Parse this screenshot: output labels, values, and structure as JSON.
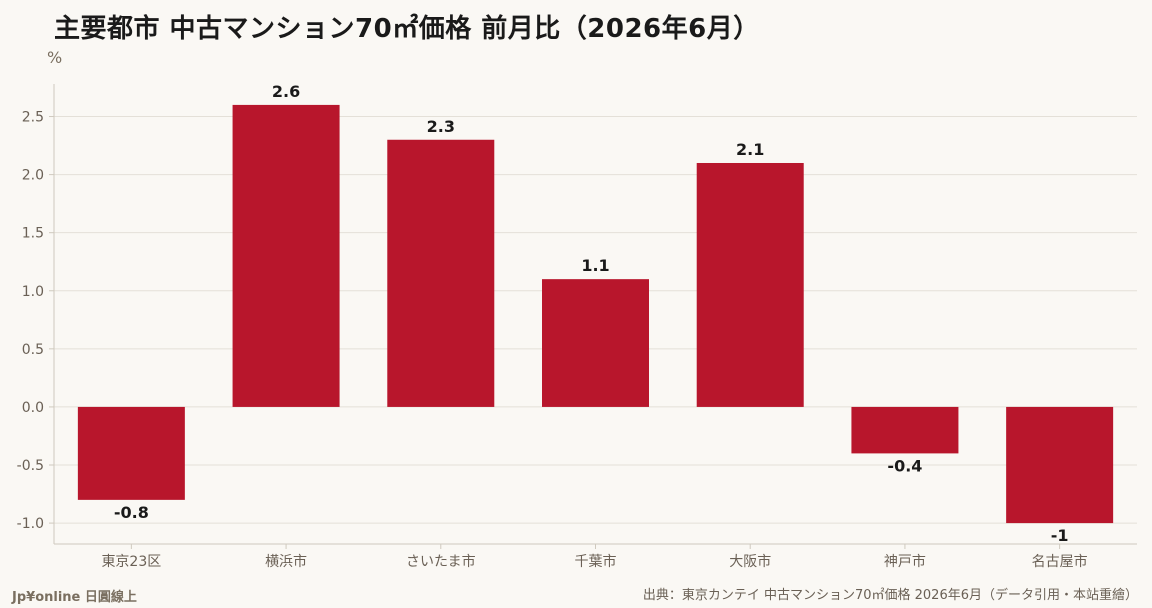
{
  "header": {
    "title": "主要都市 中古マンション70㎡価格 前月比（2026年6月）",
    "unit": "%"
  },
  "footer": {
    "brand": "Jp¥online 日圓線上",
    "source": "出典：東京カンテイ 中古マンション70㎡価格 2026年6月（データ引用・本站重繪）"
  },
  "colors": {
    "bar": "#b8162c",
    "grid": "#e4e0d8",
    "axis": "#cfc9be",
    "tick_text": "#6a6055",
    "background": "#faf8f4"
  },
  "chart_data": {
    "type": "bar",
    "title": "主要都市 中古マンション70㎡価格 前月比（2026年6月）",
    "ylabel": "%",
    "xlabel": "",
    "categories": [
      "東京23区",
      "横浜市",
      "さいたま市",
      "千葉市",
      "大阪市",
      "神戸市",
      "名古屋市"
    ],
    "values": [
      -0.8,
      2.6,
      2.3,
      1.1,
      2.1,
      -0.4,
      -1
    ],
    "value_labels": [
      "-0.8",
      "2.6",
      "2.3",
      "1.1",
      "2.1",
      "-0.4",
      "-1"
    ],
    "yticks": [
      "2.5",
      "2.0",
      "1.5",
      "1.0",
      "0.5",
      "0.0",
      "-0.5",
      "-1.0"
    ],
    "ytick_values": [
      2.5,
      2.0,
      1.5,
      1.0,
      0.5,
      0.0,
      -0.5,
      -1.0
    ],
    "ylim": [
      -1.18,
      2.78
    ],
    "grid": true,
    "legend": "none"
  }
}
